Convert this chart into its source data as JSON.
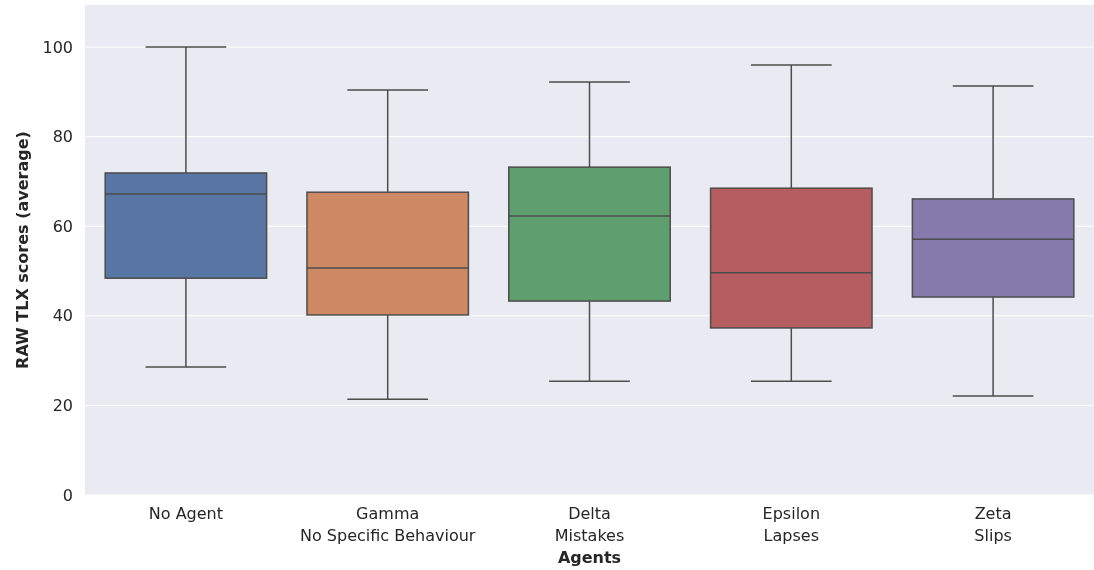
{
  "chart_data": {
    "type": "box",
    "xlabel": "Agents",
    "ylabel": "RAW TLX scores (average)",
    "categories": [
      "No Agent",
      "Gamma\nNo Specific Behaviour",
      "Delta\nMistakes",
      "Epsilon\nLapses",
      "Zeta\nSlips"
    ],
    "colors": [
      "#5975a4",
      "#cc8963",
      "#5f9e6e",
      "#b55d60",
      "#857aab"
    ],
    "boxes": [
      {
        "low": 28.6,
        "q1": 48.4,
        "median": 67.2,
        "q3": 71.9,
        "high": 100
      },
      {
        "low": 21.4,
        "q1": 40.2,
        "median": 50.7,
        "q3": 67.6,
        "high": 90.4
      },
      {
        "low": 25.4,
        "q1": 43.3,
        "median": 62.3,
        "q3": 73.2,
        "high": 92.2
      },
      {
        "low": 25.4,
        "q1": 37.3,
        "median": 49.6,
        "q3": 68.5,
        "high": 96
      },
      {
        "low": 22.1,
        "q1": 44.2,
        "median": 57.1,
        "q3": 66.1,
        "high": 91.3
      }
    ],
    "ylim": [
      0,
      109.4
    ],
    "yticks": [
      0,
      20,
      40,
      60,
      80,
      100
    ],
    "grid": "y"
  }
}
